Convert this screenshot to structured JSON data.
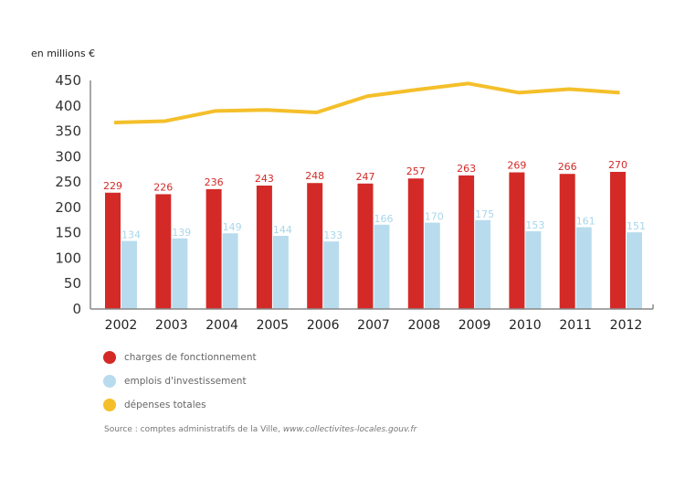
{
  "unit_label": "en millions €",
  "legend": [
    {
      "label": "charges de fonctionnement",
      "color": "#d32a27"
    },
    {
      "label": "emplois d'investissement",
      "color": "#b8dcee"
    },
    {
      "label": "dépenses totales",
      "color": "#f4bf2a"
    }
  ],
  "source": {
    "prefix": "Source : comptes administratifs de la Ville, ",
    "url": "www.collectivites-locales.gouv.fr"
  },
  "chart_data": {
    "type": "bar",
    "title": "",
    "xlabel": "",
    "ylabel": "en millions €",
    "ylim": [
      0,
      450
    ],
    "yticks": [
      0,
      50,
      100,
      150,
      200,
      250,
      300,
      350,
      400,
      450
    ],
    "grid": false,
    "legend_position": "bottom-left",
    "categories": [
      "2002",
      "2003",
      "2004",
      "2005",
      "2006",
      "2007",
      "2008",
      "2009",
      "2010",
      "2011",
      "2012"
    ],
    "series": [
      {
        "name": "charges de fonctionnement",
        "type": "bar",
        "color": "#d32a27",
        "values": [
          229,
          226,
          236,
          243,
          248,
          247,
          257,
          263,
          269,
          266,
          270
        ]
      },
      {
        "name": "emplois d'investissement",
        "type": "bar",
        "color": "#b8dcee",
        "values": [
          134,
          139,
          149,
          144,
          133,
          166,
          170,
          175,
          153,
          161,
          151
        ]
      },
      {
        "name": "dépenses totales",
        "type": "line",
        "color": "#f4bf2a",
        "values": [
          367,
          370,
          390,
          392,
          387,
          419,
          432,
          444,
          426,
          433,
          426
        ]
      }
    ]
  }
}
